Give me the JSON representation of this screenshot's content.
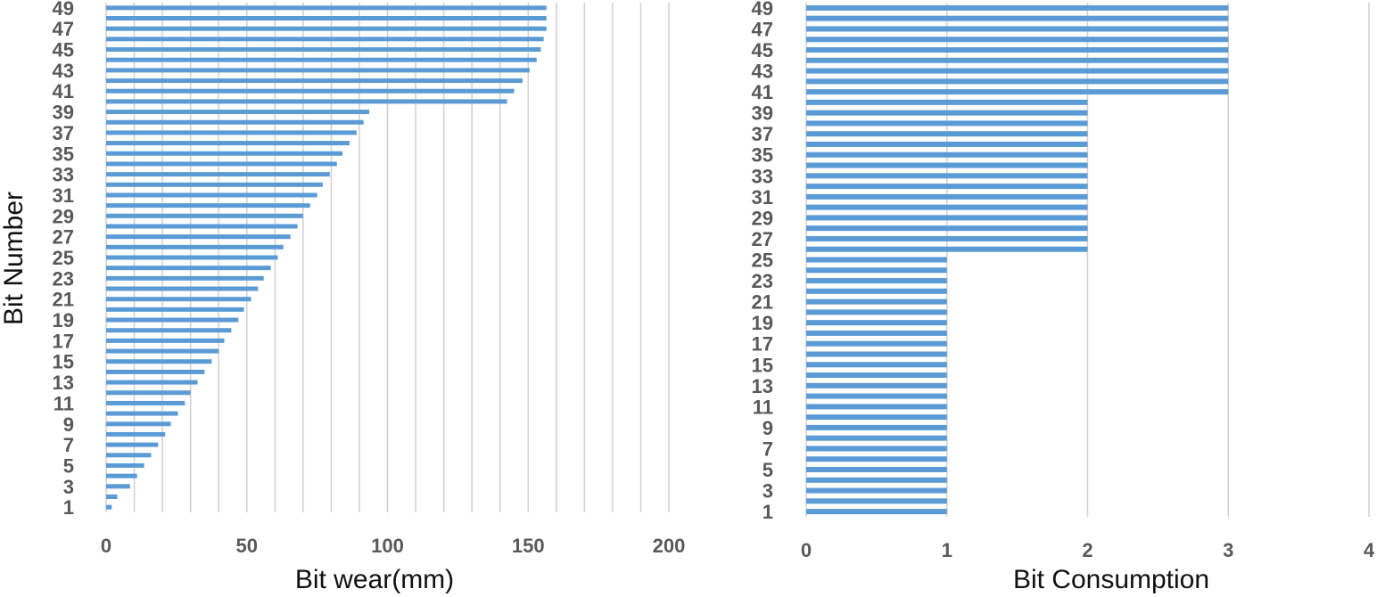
{
  "chart_data": [
    {
      "type": "bar",
      "orientation": "horizontal",
      "ylabel": "Bit Number",
      "xlabel": "Bit wear(mm)",
      "xlim": [
        0,
        200
      ],
      "x_major_ticks": [
        0,
        50,
        100,
        150,
        200
      ],
      "x_minor_grid_step": 10,
      "grid": true,
      "bar_color": "#5b9bd5",
      "categories": [
        1,
        2,
        3,
        4,
        5,
        6,
        7,
        8,
        9,
        10,
        11,
        12,
        13,
        14,
        15,
        16,
        17,
        18,
        19,
        20,
        21,
        22,
        23,
        24,
        25,
        26,
        27,
        28,
        29,
        30,
        31,
        32,
        33,
        34,
        35,
        36,
        37,
        38,
        39,
        40,
        41,
        42,
        43,
        44,
        45,
        46,
        47,
        48,
        49
      ],
      "category_tick_labels": [
        "1",
        "3",
        "5",
        "7",
        "9",
        "11",
        "13",
        "15",
        "17",
        "19",
        "21",
        "23",
        "25",
        "27",
        "29",
        "31",
        "33",
        "35",
        "37",
        "39",
        "41",
        "43",
        "45",
        "47",
        "49"
      ],
      "values": [
        2,
        4,
        8.5,
        11,
        13.5,
        16,
        18.5,
        21,
        23,
        25.5,
        28,
        30,
        32.5,
        35,
        37.5,
        40,
        42,
        44.5,
        47,
        49,
        51.5,
        54,
        56,
        58.5,
        61,
        63,
        65.5,
        68,
        70,
        72.5,
        75,
        77,
        79.5,
        82,
        84,
        86.5,
        89,
        91.5,
        93.5,
        142.5,
        145,
        148,
        150.5,
        153,
        154.5,
        155.5,
        156.5,
        156.5,
        156.5
      ]
    },
    {
      "type": "bar",
      "orientation": "horizontal",
      "ylabel": "",
      "xlabel": "Bit Consumption",
      "xlim": [
        0,
        4
      ],
      "x_major_ticks": [
        0,
        1,
        2,
        3,
        4
      ],
      "grid": true,
      "bar_color": "#5b9bd5",
      "categories": [
        1,
        2,
        3,
        4,
        5,
        6,
        7,
        8,
        9,
        10,
        11,
        12,
        13,
        14,
        15,
        16,
        17,
        18,
        19,
        20,
        21,
        22,
        23,
        24,
        25,
        26,
        27,
        28,
        29,
        30,
        31,
        32,
        33,
        34,
        35,
        36,
        37,
        38,
        39,
        40,
        41,
        42,
        43,
        44,
        45,
        46,
        47,
        48,
        49
      ],
      "category_tick_labels": [
        "1",
        "3",
        "5",
        "7",
        "9",
        "11",
        "13",
        "15",
        "17",
        "19",
        "21",
        "23",
        "25",
        "27",
        "29",
        "31",
        "33",
        "35",
        "37",
        "39",
        "41",
        "43",
        "45",
        "47",
        "49"
      ],
      "values": [
        1,
        1,
        1,
        1,
        1,
        1,
        1,
        1,
        1,
        1,
        1,
        1,
        1,
        1,
        1,
        1,
        1,
        1,
        1,
        1,
        1,
        1,
        1,
        1,
        1,
        2,
        2,
        2,
        2,
        2,
        2,
        2,
        2,
        2,
        2,
        2,
        2,
        2,
        2,
        2,
        3,
        3,
        3,
        3,
        3,
        3,
        3,
        3,
        3
      ]
    }
  ]
}
